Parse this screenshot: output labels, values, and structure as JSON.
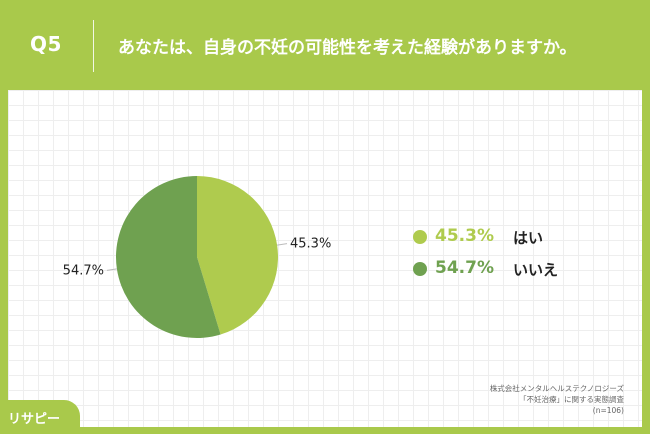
{
  "header": {
    "qnum": "Q5",
    "question": "あなたは、自身の不妊の可能性を考えた経験がありますか。"
  },
  "chart_data": {
    "type": "pie",
    "title": "",
    "slices": [
      {
        "label": "はい",
        "value": 45.3,
        "display": "45.3%",
        "color": "#afcb4e",
        "label_side": "right"
      },
      {
        "label": "いいえ",
        "value": 54.7,
        "display": "54.7%",
        "color": "#6fa150",
        "label_side": "left"
      }
    ]
  },
  "source": {
    "line1": "株式会社メンタルヘルステクノロジーズ",
    "line2": "「不妊治療」に関する実態調査",
    "line3": "(n=106)"
  },
  "logo": {
    "text": "リサピー"
  }
}
